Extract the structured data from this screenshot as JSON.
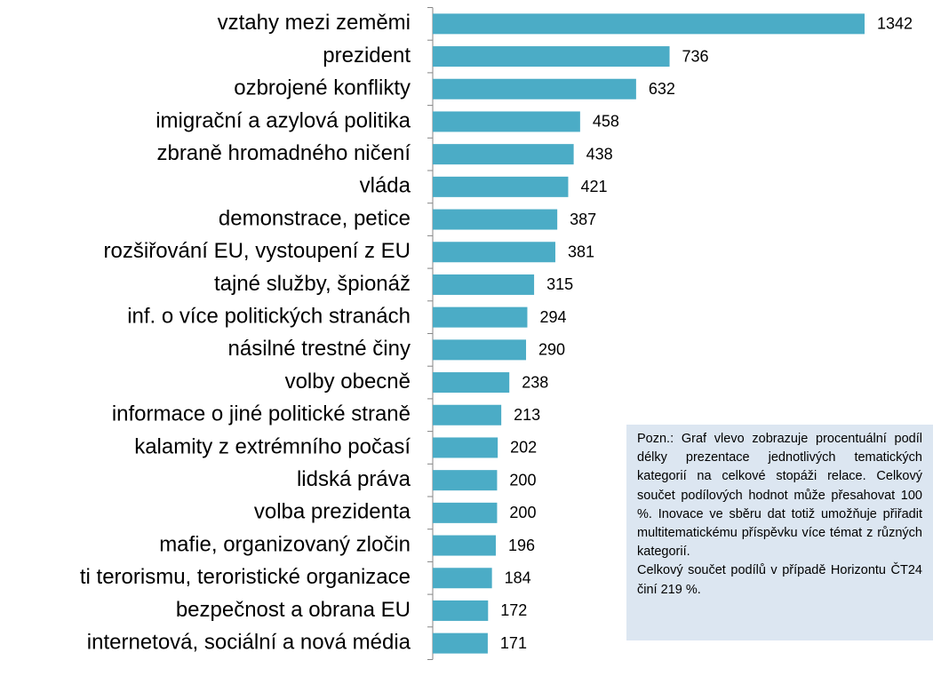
{
  "chart_data": {
    "type": "hbar",
    "color": "#4bacc6",
    "categories": [
      "vztahy mezi zeměmi",
      "prezident",
      "ozbrojené konflikty",
      "imigrační a azylová politika",
      "zbraně hromadného ničení",
      "vláda",
      "demonstrace, petice",
      "rozšiřování EU, vystoupení z EU",
      "tajné služby, špionáž",
      "inf. o více politických stranách",
      "násilné trestné činy",
      "volby obecně",
      "informace o jiné politické straně",
      "kalamity z extrémního počasí",
      "lidská práva",
      "volba prezidenta",
      "mafie, organizovaný zločin",
      "ti terorismu, teroristické organizace",
      "bezpečnost a obrana EU",
      "internetová, sociální a nová média"
    ],
    "values": [
      1342,
      736,
      632,
      458,
      438,
      421,
      387,
      381,
      315,
      294,
      290,
      238,
      213,
      202,
      200,
      200,
      196,
      184,
      172,
      171
    ],
    "note": [
      "Pozn.: Graf vlevo zobrazuje procentuální podíl délky prezentace jednotlivých tematických kategorií na celkové stopáži relace. Celkový součet podílových hodnot může přesahovat 100 %. Inovace ve sběru dat totiž umožňuje přiřadit multitematickému příspěvku více témat z různých kategorií.",
      "Celkový součet podílů v případě Horizontu ČT24 činí 219 %."
    ]
  }
}
